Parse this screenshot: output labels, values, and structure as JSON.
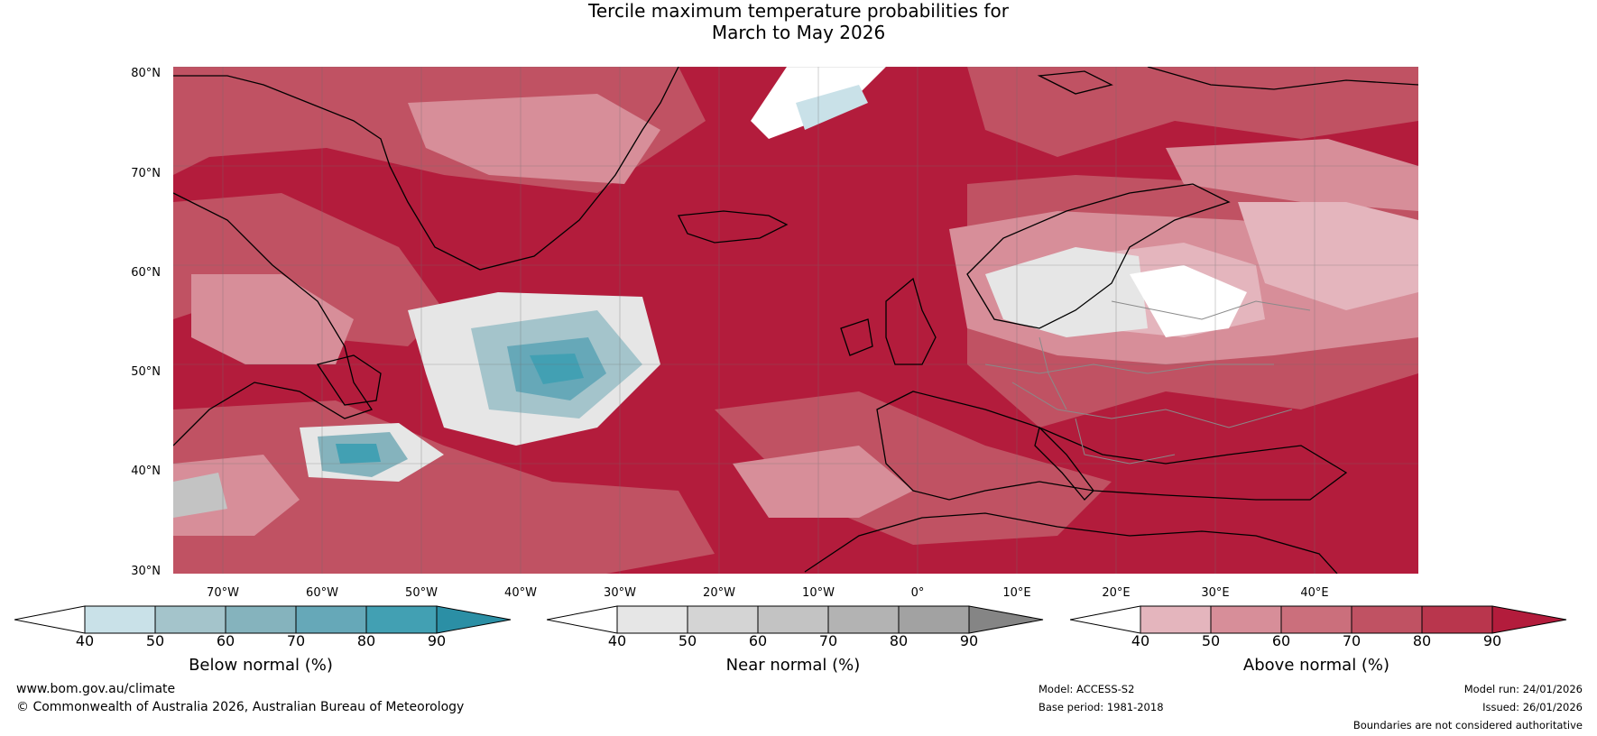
{
  "title": {
    "line1": "Tercile maximum temperature probabilities for",
    "line2": "March to May 2026"
  },
  "axes": {
    "lat_labels": [
      "80°N",
      "70°N",
      "60°N",
      "50°N",
      "40°N",
      "30°N"
    ],
    "lon_labels": [
      "70°W",
      "60°W",
      "50°W",
      "40°W",
      "30°W",
      "20°W",
      "10°W",
      "0°",
      "10°E",
      "20°E",
      "30°E",
      "40°E"
    ]
  },
  "colorbars": [
    {
      "title": "Below normal (%)",
      "ticks": [
        "40",
        "50",
        "60",
        "70",
        "80",
        "90"
      ],
      "colors": [
        "#ffffff",
        "#c9e1e8",
        "#a4c4cb",
        "#85b3bd",
        "#66a8b8",
        "#42a0b3",
        "#2b8fa5"
      ]
    },
    {
      "title": "Near normal (%)",
      "ticks": [
        "40",
        "50",
        "60",
        "70",
        "80",
        "90"
      ],
      "colors": [
        "#ffffff",
        "#e6e6e6",
        "#d4d4d4",
        "#c3c3c3",
        "#b3b3b3",
        "#a2a2a2",
        "#858585"
      ]
    },
    {
      "title": "Above normal (%)",
      "ticks": [
        "40",
        "50",
        "60",
        "70",
        "80",
        "90"
      ],
      "colors": [
        "#ffffff",
        "#e4b5bd",
        "#d78e99",
        "#cb6f7c",
        "#c05263",
        "#b9364d",
        "#b31c3c"
      ]
    }
  ],
  "footer": {
    "website": "www.bom.gov.au/climate",
    "copyright": "© Commonwealth of Australia 2026, Australian Bureau of Meteorology",
    "model": "Model: ACCESS-S2",
    "base_period": "Base period: 1981-2018",
    "model_run": "Model run: 24/01/2026",
    "issued": "Issued: 26/01/2026",
    "disclaimer": "Boundaries are not considered authoritative"
  },
  "palette": {
    "above_high": "#b31c3c",
    "above_mid": "#c05263",
    "above_low": "#d78e99",
    "near": "#e6e6e6",
    "below_mid": "#85b3bd",
    "below_high": "#42a0b3"
  }
}
